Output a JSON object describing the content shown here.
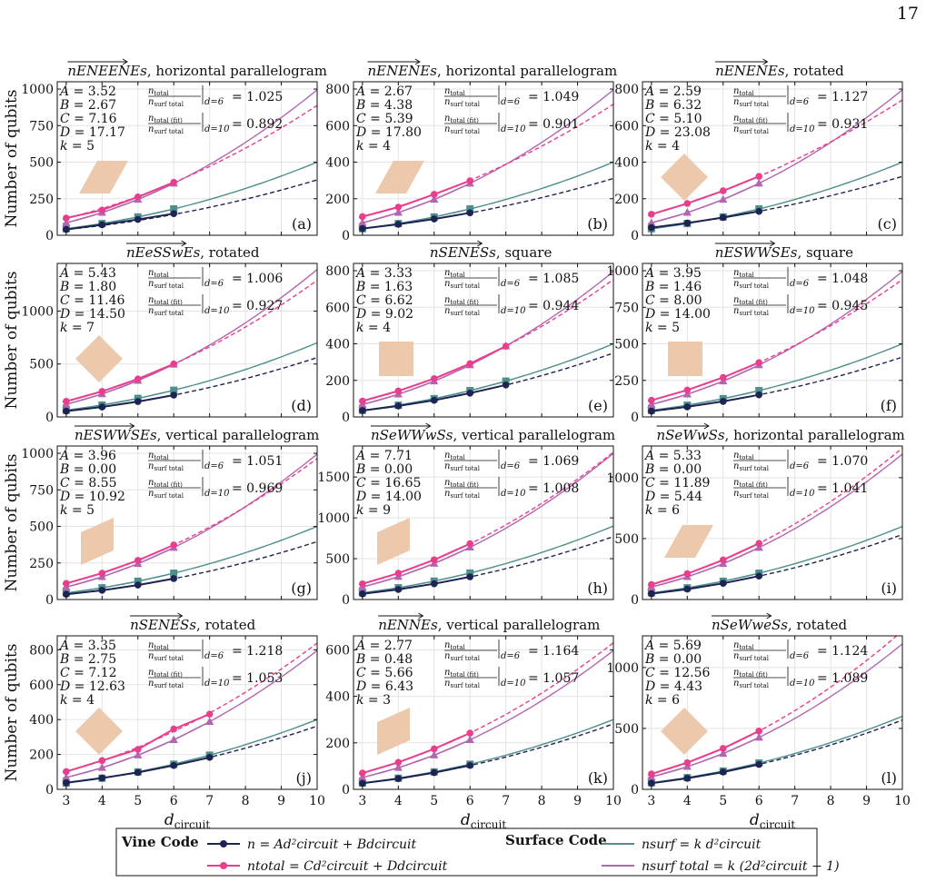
{
  "page_number": "17",
  "y_axis_label": "Number of qubits",
  "x_axis_label": "d",
  "x_axis_label_sub": "circuit",
  "colors": {
    "vine_n": "#1d2352",
    "vine_ntotal": "#e83e8c",
    "surf": "#4e8f8b",
    "surf_total": "#b266b2",
    "shape": "#ecc9ad"
  },
  "ratio_labels": {
    "top_num": "n",
    "top_num_sub": "total",
    "top_den": "n",
    "top_den_sub": "surf total",
    "top_eval": "d=6",
    "bot_num": "n",
    "bot_num_sub": "total (fit)",
    "bot_den": "n",
    "bot_den_sub": "surf total",
    "bot_eval": "d=10"
  },
  "legend": {
    "vine_title": "Vine Code",
    "surface_title": "Surface Code",
    "vine_n_label": "n = Ad²circuit + Bdcircuit",
    "vine_ntotal_label": "ntotal = Cd²circuit + Ddcircuit",
    "surf_label": "nsurf = k d²circuit",
    "surf_total_label": "nsurf total = k (2d²circuit − 1)"
  },
  "chart_data": [
    {
      "type": "line",
      "code": "nENEENEs",
      "title_suffix": ", horizontal parallelogram",
      "panel": "(a)",
      "A": "3.52",
      "B": "2.67",
      "C": "7.16",
      "D": "17.17",
      "k": "5",
      "ratio6": "1.025",
      "ratio10": "0.892",
      "ymax": 1050,
      "yticks": [
        0,
        250,
        500,
        750,
        1000
      ],
      "shape": "hpar",
      "xmax_data": 6,
      "n": [
        40,
        72,
        108,
        148
      ],
      "nt": [
        118,
        172,
        262,
        362
      ],
      "s": [
        45,
        80,
        125,
        180
      ],
      "st": [
        85,
        155,
        245,
        355
      ]
    },
    {
      "type": "line",
      "code": "nENENEs",
      "title_suffix": ", horizontal parallelogram",
      "panel": "(b)",
      "A": "2.67",
      "B": "4.38",
      "C": "5.39",
      "D": "17.80",
      "k": "4",
      "ratio6": "1.049",
      "ratio10": "0.901",
      "ymax": 840,
      "yticks": [
        0,
        200,
        400,
        600,
        800
      ],
      "shape": "hpar",
      "xmax_data": 6,
      "n": [
        37,
        60,
        89,
        123
      ],
      "nt": [
        102,
        154,
        224,
        298
      ],
      "s": [
        36,
        64,
        100,
        144
      ],
      "st": [
        68,
        124,
        196,
        284
      ]
    },
    {
      "type": "line",
      "code": "nENENEs",
      "title_suffix": ", rotated",
      "panel": "(c)",
      "A": "2.59",
      "B": "6.32",
      "C": "5.10",
      "D": "23.08",
      "k": "4",
      "ratio6": "1.127",
      "ratio10": "0.931",
      "ymax": 840,
      "yticks": [
        0,
        200,
        400,
        600,
        800
      ],
      "shape": "rot",
      "xmax_data": 6,
      "n": [
        42,
        67,
        97,
        131
      ],
      "nt": [
        115,
        174,
        243,
        322
      ],
      "s": [
        36,
        64,
        100,
        144
      ],
      "st": [
        68,
        124,
        196,
        284
      ]
    },
    {
      "type": "line",
      "code": "nEeSSwEs",
      "title_suffix": ", rotated",
      "panel": "(d)",
      "A": "5.43",
      "B": "1.80",
      "C": "11.46",
      "D": "14.50",
      "k": "7",
      "ratio6": "1.006",
      "ratio10": "0.927",
      "ymax": 1450,
      "yticks": [
        0,
        500,
        1000
      ],
      "shape": "rot",
      "xmax_data": 6,
      "n": [
        55,
        94,
        145,
        206
      ],
      "nt": [
        148,
        241,
        359,
        500
      ],
      "s": [
        63,
        112,
        175,
        252
      ],
      "st": [
        119,
        217,
        343,
        497
      ]
    },
    {
      "type": "line",
      "code": "nSENESs",
      "title_suffix": ", square",
      "panel": "(e)",
      "A": "3.33",
      "B": "1.63",
      "C": "6.62",
      "D": "9.02",
      "k": "4",
      "ratio6": "1.085",
      "ratio10": "0.944",
      "ymax": 840,
      "yticks": [
        0,
        200,
        400,
        600,
        800
      ],
      "shape": "sq",
      "xmax_data": 7,
      "n": [
        35,
        60,
        91,
        130,
        175
      ],
      "nt": [
        87,
        142,
        210,
        292,
        387
      ],
      "s": [
        36,
        64,
        100,
        144,
        196
      ],
      "st": [
        68,
        124,
        196,
        284,
        388
      ]
    },
    {
      "type": "line",
      "code": "nESWWSEs",
      "title_suffix": ", square",
      "panel": "(f)",
      "A": "3.95",
      "B": "1.46",
      "C": "8.00",
      "D": "14.00",
      "k": "5",
      "ratio6": "1.048",
      "ratio10": "0.945",
      "ymax": 1050,
      "yticks": [
        0,
        250,
        500,
        750,
        1000
      ],
      "shape": "sq",
      "xmax_data": 6,
      "n": [
        40,
        69,
        106,
        151
      ],
      "nt": [
        114,
        184,
        270,
        372
      ],
      "s": [
        45,
        80,
        125,
        180
      ],
      "st": [
        85,
        155,
        245,
        355
      ]
    },
    {
      "type": "line",
      "code": "nESWWSEs",
      "title_suffix": ", vertical parallelogram",
      "panel": "(g)",
      "A": "3.96",
      "B": "0.00",
      "C": "8.55",
      "D": "10.92",
      "k": "5",
      "ratio6": "1.051",
      "ratio10": "0.969",
      "ymax": 1050,
      "yticks": [
        0,
        250,
        500,
        750,
        1000
      ],
      "shape": "vpar",
      "xmax_data": 6,
      "n": [
        36,
        63,
        99,
        143
      ],
      "nt": [
        110,
        180,
        268,
        373
      ],
      "s": [
        45,
        80,
        125,
        180
      ],
      "st": [
        85,
        155,
        245,
        355
      ]
    },
    {
      "type": "line",
      "code": "nSeWWwSs",
      "title_suffix": ", vertical parallelogram",
      "panel": "(h)",
      "A": "7.71",
      "B": "0.00",
      "C": "16.65",
      "D": "14.00",
      "k": "9",
      "ratio6": "1.069",
      "ratio10": "1.008",
      "ymax": 1880,
      "yticks": [
        0,
        500,
        1000,
        1500
      ],
      "shape": "vpar",
      "xmax_data": 6,
      "n": [
        69,
        123,
        193,
        278
      ],
      "nt": [
        192,
        322,
        486,
        683
      ],
      "s": [
        81,
        144,
        225,
        324
      ],
      "st": [
        153,
        279,
        441,
        639
      ]
    },
    {
      "type": "line",
      "code": "nSeWwSs",
      "title_suffix": ", horizontal parallelogram",
      "panel": "(i)",
      "A": "5.33",
      "B": "0.00",
      "C": "11.89",
      "D": "5.44",
      "k": "6",
      "ratio6": "1.070",
      "ratio10": "1.041",
      "ymax": 1260,
      "yticks": [
        0,
        500,
        1000
      ],
      "shape": "hpar",
      "xmax_data": 6,
      "n": [
        48,
        85,
        133,
        192
      ],
      "nt": [
        123,
        212,
        325,
        461
      ],
      "s": [
        54,
        96,
        150,
        216
      ],
      "st": [
        102,
        186,
        294,
        426
      ]
    },
    {
      "type": "line",
      "code": "nSENESs",
      "title_suffix": ", rotated",
      "panel": "(j)",
      "A": "3.35",
      "B": "2.75",
      "C": "7.12",
      "D": "12.63",
      "k": "4",
      "ratio6": "1.218",
      "ratio10": "1.053",
      "ymax": 880,
      "yticks": [
        0,
        200,
        400,
        600,
        800
      ],
      "shape": "rot",
      "xmax_data": 7,
      "n": [
        38,
        65,
        97,
        137,
        183
      ],
      "nt": [
        102,
        165,
        229,
        346,
        431
      ],
      "s": [
        36,
        64,
        100,
        144,
        196
      ],
      "st": [
        68,
        124,
        196,
        284,
        388
      ]
    },
    {
      "type": "line",
      "code": "nENNEs",
      "title_suffix": ", vertical parallelogram",
      "panel": "(k)",
      "A": "2.77",
      "B": "0.48",
      "C": "5.66",
      "D": "6.43",
      "k": "3",
      "ratio6": "1.164",
      "ratio10": "1.057",
      "ymax": 660,
      "yticks": [
        0,
        200,
        400,
        600
      ],
      "shape": "vpar",
      "xmax_data": 6,
      "n": [
        26,
        46,
        72,
        103
      ],
      "nt": [
        70,
        116,
        174,
        242
      ],
      "s": [
        27,
        48,
        75,
        108
      ],
      "st": [
        51,
        93,
        147,
        213
      ]
    },
    {
      "type": "line",
      "code": "nSeWweSs",
      "title_suffix": ", rotated",
      "panel": "(l)",
      "A": "5.69",
      "B": "0.00",
      "C": "12.56",
      "D": "4.43",
      "k": "6",
      "ratio6": "1.124",
      "ratio10": "1.089",
      "ymax": 1260,
      "yticks": [
        0,
        500,
        1000
      ],
      "shape": "rot",
      "xmax_data": 6,
      "n": [
        51,
        91,
        142,
        205
      ],
      "nt": [
        126,
        219,
        336,
        479
      ],
      "s": [
        54,
        96,
        150,
        216
      ],
      "st": [
        102,
        186,
        294,
        426
      ]
    }
  ]
}
